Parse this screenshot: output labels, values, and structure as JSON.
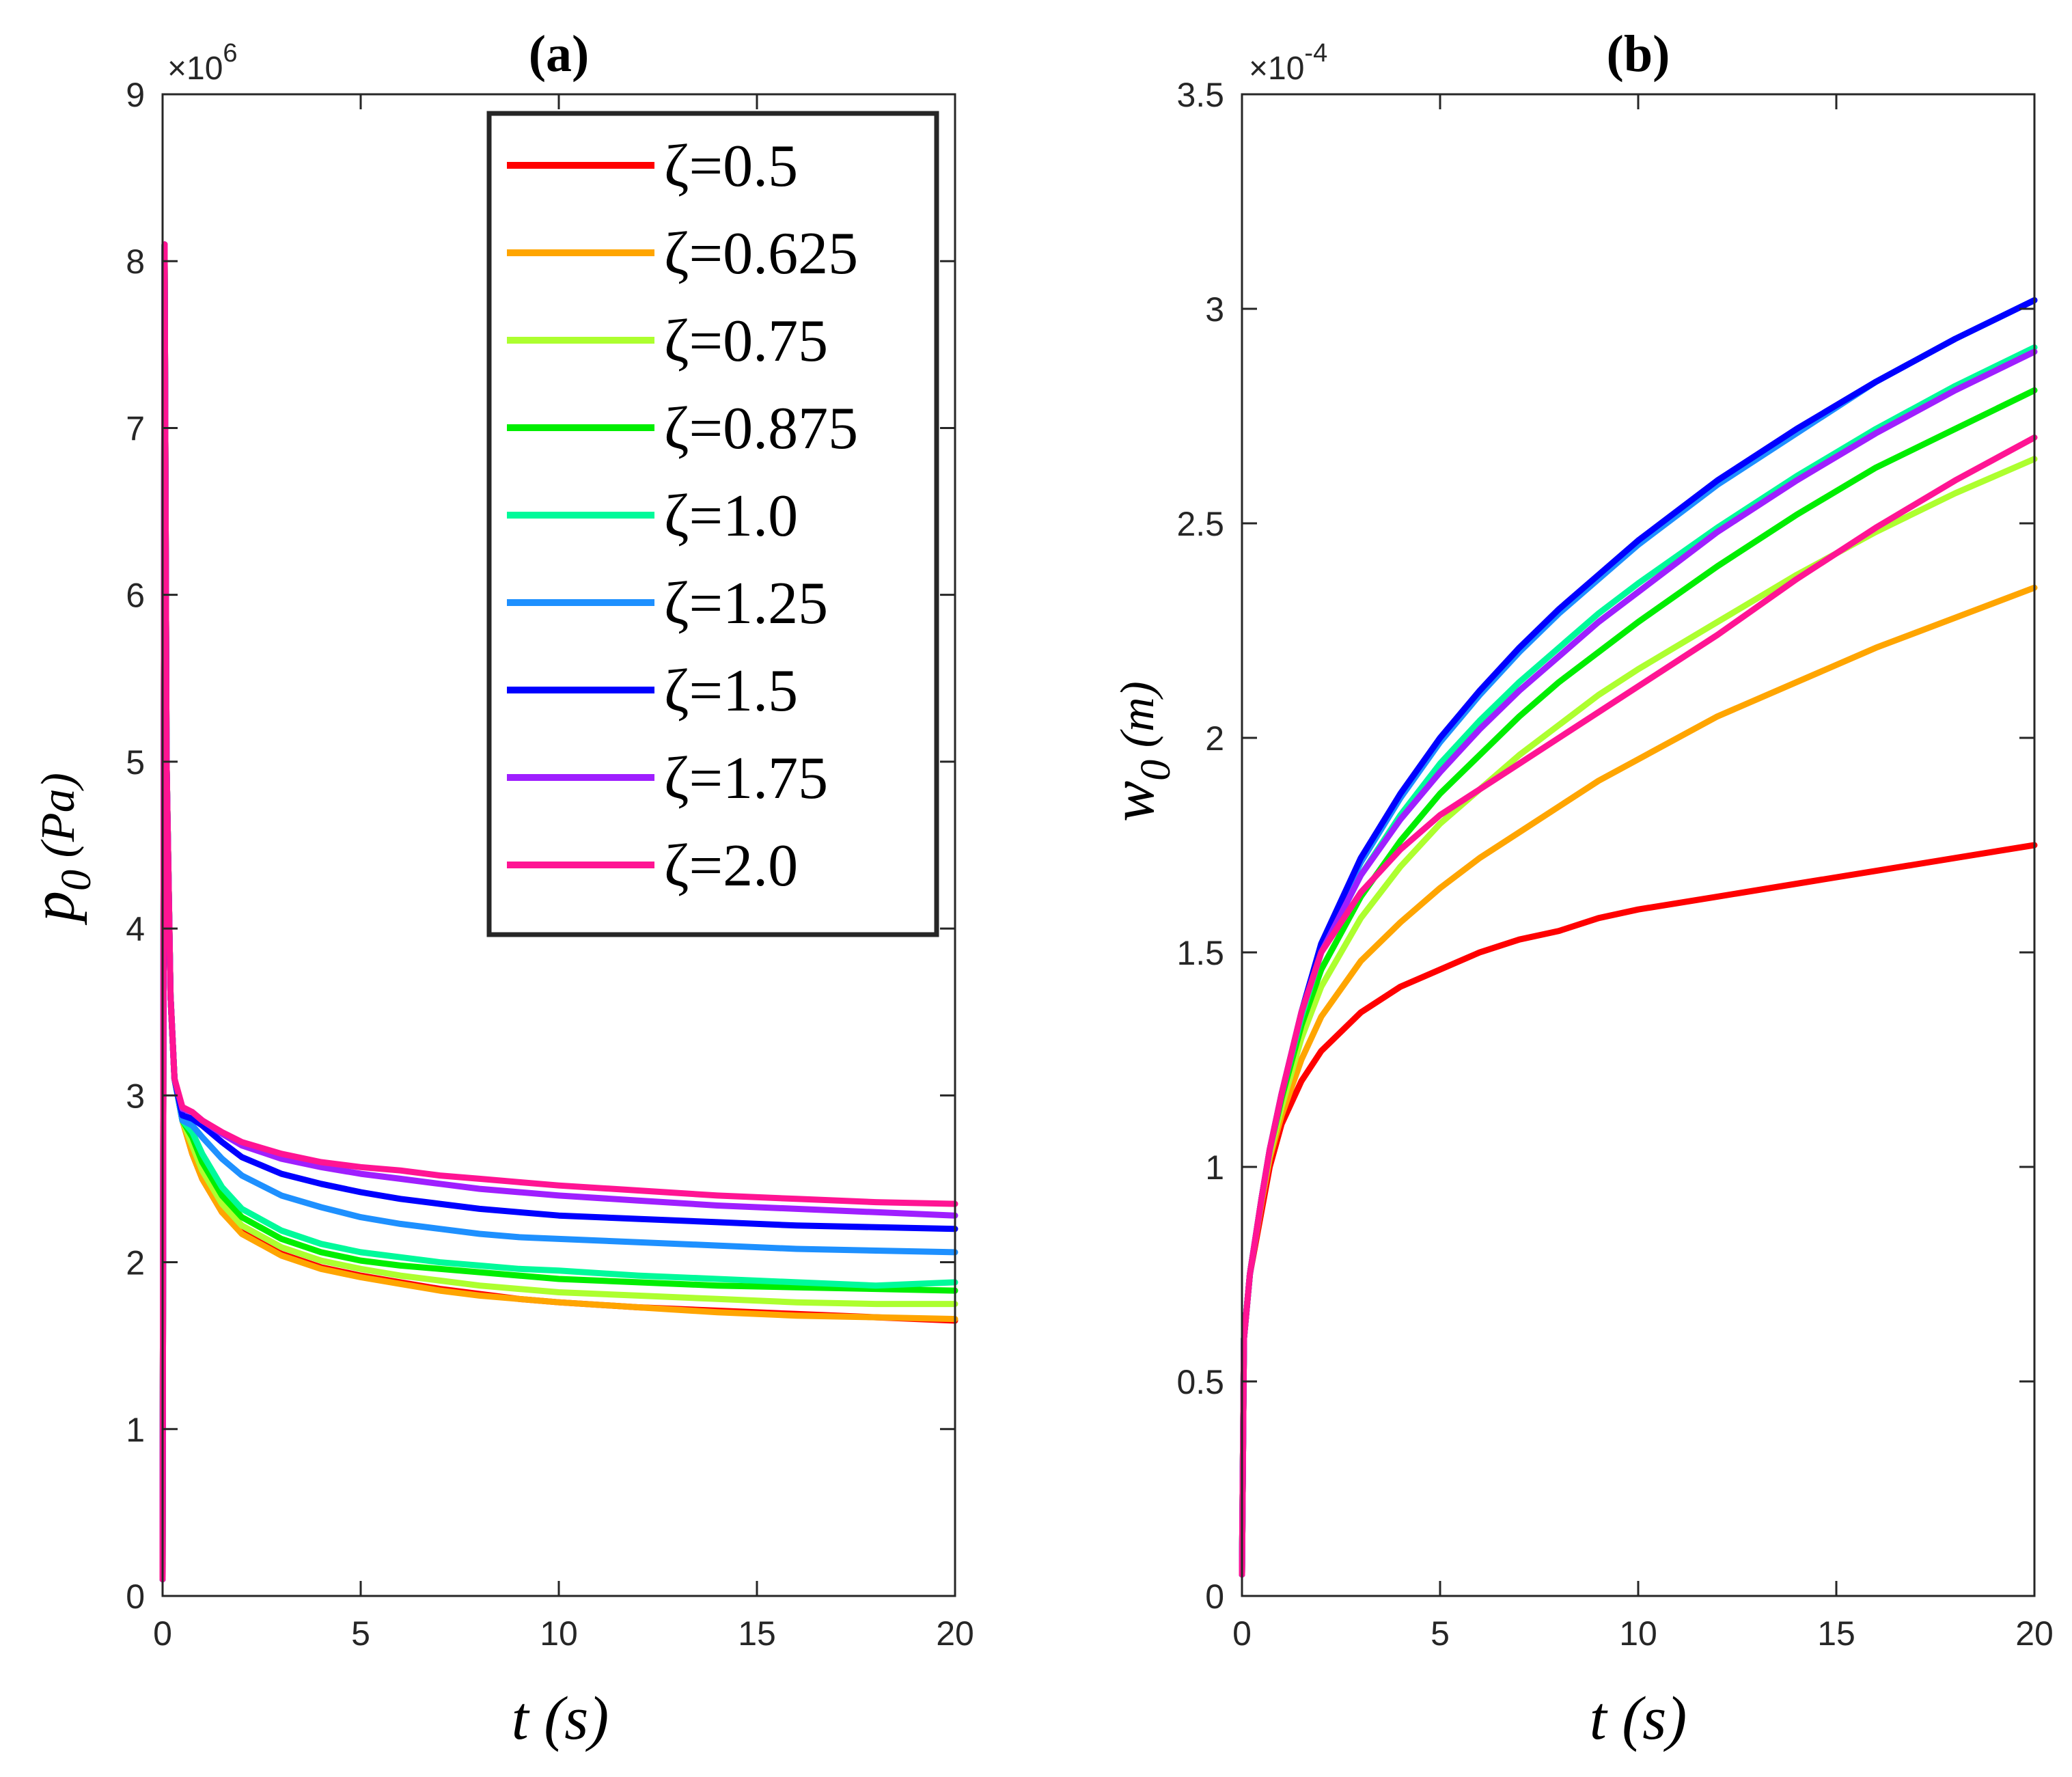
{
  "chart_data": [
    {
      "type": "line",
      "panel": "a",
      "title": "(a)",
      "xlabel": "t (s)",
      "ylabel": "p_0 (Pa)",
      "ylabel_main": "p",
      "ylabel_sub": "0",
      "ylabel_unit": "(Pa)",
      "y_exponent_base": "×10",
      "y_exponent_power": "6",
      "xlim": [
        0,
        20
      ],
      "ylim": [
        0,
        9
      ],
      "xticks": [
        0,
        5,
        10,
        15,
        20
      ],
      "xtick_labels": [
        "0",
        "5",
        "10",
        "15",
        "20"
      ],
      "yticks": [
        0,
        1,
        2,
        3,
        4,
        5,
        6,
        7,
        8,
        9
      ],
      "ytick_labels": [
        "0",
        "1",
        "2",
        "3",
        "4",
        "5",
        "6",
        "7",
        "8",
        "9"
      ],
      "legend_position": "top-right",
      "x": [
        0,
        0.05,
        0.1,
        0.2,
        0.3,
        0.5,
        0.75,
        1,
        1.5,
        2,
        3,
        4,
        5,
        6,
        7,
        8,
        9,
        10,
        12,
        14,
        16,
        18,
        20
      ],
      "series": [
        {
          "name": "ζ=0.5",
          "color": "#ff0000",
          "values": [
            0.1,
            8.1,
            5.0,
            3.6,
            3.1,
            2.85,
            2.65,
            2.5,
            2.3,
            2.18,
            2.05,
            1.97,
            1.92,
            1.88,
            1.84,
            1.81,
            1.78,
            1.76,
            1.73,
            1.71,
            1.69,
            1.67,
            1.65
          ]
        },
        {
          "name": "ζ=0.625",
          "color": "#ffa500",
          "values": [
            0.1,
            8.1,
            5.0,
            3.6,
            3.1,
            2.85,
            2.65,
            2.5,
            2.3,
            2.17,
            2.04,
            1.96,
            1.91,
            1.87,
            1.83,
            1.8,
            1.78,
            1.76,
            1.73,
            1.7,
            1.68,
            1.67,
            1.66
          ]
        },
        {
          "name": "ζ=0.75",
          "color": "#adff2f",
          "values": [
            0.1,
            8.1,
            5.0,
            3.6,
            3.1,
            2.85,
            2.7,
            2.55,
            2.35,
            2.22,
            2.09,
            2.01,
            1.96,
            1.92,
            1.89,
            1.86,
            1.84,
            1.82,
            1.8,
            1.78,
            1.76,
            1.75,
            1.75
          ]
        },
        {
          "name": "ζ=0.875",
          "color": "#00ee00",
          "values": [
            0.1,
            8.1,
            5.0,
            3.6,
            3.1,
            2.85,
            2.75,
            2.6,
            2.4,
            2.27,
            2.14,
            2.06,
            2.01,
            1.98,
            1.96,
            1.94,
            1.92,
            1.9,
            1.88,
            1.86,
            1.85,
            1.84,
            1.83
          ]
        },
        {
          "name": "ζ=1.0",
          "color": "#00fa9a",
          "values": [
            0.1,
            8.1,
            5.0,
            3.6,
            3.1,
            2.85,
            2.78,
            2.65,
            2.45,
            2.32,
            2.19,
            2.11,
            2.06,
            2.03,
            2.0,
            1.98,
            1.96,
            1.95,
            1.92,
            1.9,
            1.88,
            1.86,
            1.88
          ]
        },
        {
          "name": "ζ=1.25",
          "color": "#1e90ff",
          "values": [
            0.1,
            8.1,
            5.0,
            3.6,
            3.1,
            2.85,
            2.82,
            2.75,
            2.62,
            2.52,
            2.4,
            2.33,
            2.27,
            2.23,
            2.2,
            2.17,
            2.15,
            2.14,
            2.12,
            2.1,
            2.08,
            2.07,
            2.06
          ]
        },
        {
          "name": "ζ=1.5",
          "color": "#0000ff",
          "values": [
            0.1,
            8.1,
            5.0,
            3.6,
            3.1,
            2.88,
            2.86,
            2.82,
            2.72,
            2.63,
            2.53,
            2.47,
            2.42,
            2.38,
            2.35,
            2.32,
            2.3,
            2.28,
            2.26,
            2.24,
            2.22,
            2.21,
            2.2
          ]
        },
        {
          "name": "ζ=1.75",
          "color": "#9f1fff",
          "values": [
            0.1,
            8.1,
            5.0,
            3.6,
            3.1,
            2.92,
            2.9,
            2.85,
            2.77,
            2.7,
            2.62,
            2.57,
            2.53,
            2.5,
            2.47,
            2.44,
            2.42,
            2.4,
            2.37,
            2.34,
            2.32,
            2.3,
            2.28
          ]
        },
        {
          "name": "ζ=2.0",
          "color": "#ff1493",
          "values": [
            0.1,
            8.1,
            5.0,
            3.6,
            3.1,
            2.93,
            2.9,
            2.85,
            2.78,
            2.72,
            2.65,
            2.6,
            2.57,
            2.55,
            2.52,
            2.5,
            2.48,
            2.46,
            2.43,
            2.4,
            2.38,
            2.36,
            2.35
          ]
        }
      ]
    },
    {
      "type": "line",
      "panel": "b",
      "title": "(b)",
      "xlabel": "t (s)",
      "ylabel": "w_0 (m)",
      "ylabel_main": "w",
      "ylabel_sub": "0",
      "ylabel_unit": "(m)",
      "y_exponent_base": "×10",
      "y_exponent_power": "-4",
      "xlim": [
        0,
        20
      ],
      "ylim": [
        0,
        3.5
      ],
      "xticks": [
        0,
        5,
        10,
        15,
        20
      ],
      "xtick_labels": [
        "0",
        "5",
        "10",
        "15",
        "20"
      ],
      "yticks": [
        0,
        0.5,
        1,
        1.5,
        2,
        2.5,
        3,
        3.5
      ],
      "ytick_labels": [
        "0",
        "0.5",
        "1",
        "1.5",
        "2",
        "2.5",
        "3",
        "3.5"
      ],
      "x": [
        0,
        0.05,
        0.2,
        0.5,
        0.7,
        1,
        1.5,
        2,
        3,
        4,
        5,
        6,
        7,
        8,
        9,
        10,
        12,
        14,
        16,
        18,
        20
      ],
      "series": [
        {
          "name": "ζ=0.5",
          "color": "#ff0000",
          "values": [
            0.05,
            0.6,
            0.75,
            0.9,
            1.0,
            1.1,
            1.2,
            1.27,
            1.36,
            1.42,
            1.46,
            1.5,
            1.53,
            1.55,
            1.58,
            1.6,
            1.63,
            1.66,
            1.69,
            1.72,
            1.75
          ]
        },
        {
          "name": "ζ=0.625",
          "color": "#ffa500",
          "values": [
            0.05,
            0.6,
            0.75,
            0.92,
            1.02,
            1.12,
            1.25,
            1.35,
            1.48,
            1.57,
            1.65,
            1.72,
            1.78,
            1.84,
            1.9,
            1.95,
            2.05,
            2.13,
            2.21,
            2.28,
            2.35
          ]
        },
        {
          "name": "ζ=0.75",
          "color": "#adff2f",
          "values": [
            0.05,
            0.6,
            0.75,
            0.93,
            1.03,
            1.14,
            1.3,
            1.42,
            1.58,
            1.7,
            1.8,
            1.88,
            1.96,
            2.03,
            2.1,
            2.16,
            2.27,
            2.38,
            2.48,
            2.57,
            2.65
          ]
        },
        {
          "name": "ζ=0.875",
          "color": "#00ee00",
          "values": [
            0.05,
            0.6,
            0.75,
            0.93,
            1.04,
            1.16,
            1.33,
            1.46,
            1.63,
            1.76,
            1.87,
            1.96,
            2.05,
            2.13,
            2.2,
            2.27,
            2.4,
            2.52,
            2.63,
            2.72,
            2.81
          ]
        },
        {
          "name": "ζ=1.0",
          "color": "#00fa9a",
          "values": [
            0.05,
            0.6,
            0.75,
            0.93,
            1.04,
            1.17,
            1.35,
            1.5,
            1.68,
            1.82,
            1.94,
            2.04,
            2.13,
            2.21,
            2.29,
            2.36,
            2.49,
            2.61,
            2.72,
            2.82,
            2.91
          ]
        },
        {
          "name": "ζ=1.25",
          "color": "#1e90ff",
          "values": [
            0.05,
            0.6,
            0.75,
            0.93,
            1.04,
            1.17,
            1.36,
            1.52,
            1.71,
            1.86,
            1.99,
            2.1,
            2.2,
            2.29,
            2.37,
            2.45,
            2.59,
            2.71,
            2.83,
            2.93,
            3.02
          ]
        },
        {
          "name": "ζ=1.5",
          "color": "#0000ff",
          "values": [
            0.05,
            0.6,
            0.75,
            0.93,
            1.04,
            1.17,
            1.36,
            1.52,
            1.72,
            1.87,
            2.0,
            2.11,
            2.21,
            2.3,
            2.38,
            2.46,
            2.6,
            2.72,
            2.83,
            2.93,
            3.02
          ]
        },
        {
          "name": "ζ=1.75",
          "color": "#9f1fff",
          "values": [
            0.05,
            0.6,
            0.75,
            0.93,
            1.04,
            1.17,
            1.36,
            1.5,
            1.68,
            1.81,
            1.92,
            2.02,
            2.11,
            2.19,
            2.27,
            2.34,
            2.48,
            2.6,
            2.71,
            2.81,
            2.9
          ]
        },
        {
          "name": "ζ=2.0",
          "color": "#ff1493",
          "values": [
            0.05,
            0.6,
            0.75,
            0.93,
            1.04,
            1.17,
            1.36,
            1.5,
            1.64,
            1.74,
            1.82,
            1.88,
            1.94,
            2.0,
            2.06,
            2.12,
            2.24,
            2.37,
            2.49,
            2.6,
            2.7
          ]
        }
      ]
    }
  ]
}
